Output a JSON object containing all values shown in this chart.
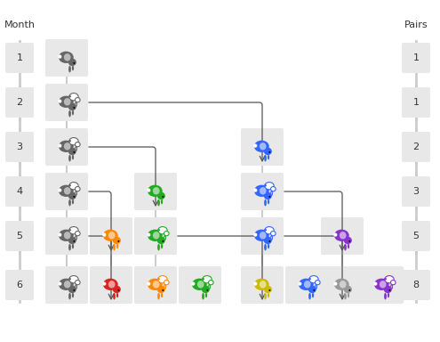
{
  "month_label": "Month",
  "pairs_label": "Pairs",
  "months": [
    1,
    2,
    3,
    4,
    5,
    6
  ],
  "pairs": [
    1,
    1,
    2,
    3,
    5,
    8
  ],
  "fig_bg": "#ffffff",
  "box_color": "#e8e8e8",
  "chain_color": "#cccccc",
  "arrow_color": "#555555",
  "label_color": "#333333",
  "colors": {
    "dark_gray": "#666666",
    "blue": "#3366ff",
    "green": "#22aa22",
    "orange": "#ff8800",
    "purple": "#8833cc",
    "red": "#dd2222",
    "yellow": "#ccbb00",
    "gray": "#999999"
  },
  "rabbit_data": {
    "1": [
      {
        "col": 0,
        "color": "dark_gray",
        "mature": false
      }
    ],
    "2": [
      {
        "col": 0,
        "color": "dark_gray",
        "mature": true
      }
    ],
    "3": [
      {
        "col": 0,
        "color": "dark_gray",
        "mature": true
      },
      {
        "col": 4,
        "color": "blue",
        "mature": false
      }
    ],
    "4": [
      {
        "col": 0,
        "color": "dark_gray",
        "mature": true
      },
      {
        "col": 2,
        "color": "green",
        "mature": false
      },
      {
        "col": 4,
        "color": "blue",
        "mature": true
      }
    ],
    "5": [
      {
        "col": 0,
        "color": "dark_gray",
        "mature": true
      },
      {
        "col": 1,
        "color": "orange",
        "mature": false
      },
      {
        "col": 2,
        "color": "green",
        "mature": true
      },
      {
        "col": 4,
        "color": "blue",
        "mature": true
      },
      {
        "col": 6,
        "color": "purple",
        "mature": false
      }
    ],
    "6": [
      {
        "col": 0,
        "color": "dark_gray",
        "mature": true
      },
      {
        "col": 1,
        "color": "red",
        "mature": false
      },
      {
        "col": 2,
        "color": "orange",
        "mature": true
      },
      {
        "col": 3,
        "color": "green",
        "mature": true
      },
      {
        "col": 4,
        "color": "yellow",
        "mature": false
      },
      {
        "col": 5,
        "color": "blue",
        "mature": true
      },
      {
        "col": 6,
        "color": "gray",
        "mature": false
      },
      {
        "col": 7,
        "color": "purple",
        "mature": true
      }
    ]
  },
  "arrows": [
    {
      "fm": 2,
      "fc": 0,
      "tm": 3,
      "tc": 4
    },
    {
      "fm": 3,
      "fc": 0,
      "tm": 4,
      "tc": 2
    },
    {
      "fm": 4,
      "fc": 0,
      "tm": 5,
      "tc": 1
    },
    {
      "fm": 4,
      "fc": 4,
      "tm": 5,
      "tc": 6
    },
    {
      "fm": 5,
      "fc": 0,
      "tm": 6,
      "tc": 1
    },
    {
      "fm": 5,
      "fc": 2,
      "tm": 6,
      "tc": 4
    },
    {
      "fm": 5,
      "fc": 4,
      "tm": 6,
      "tc": 6
    }
  ]
}
